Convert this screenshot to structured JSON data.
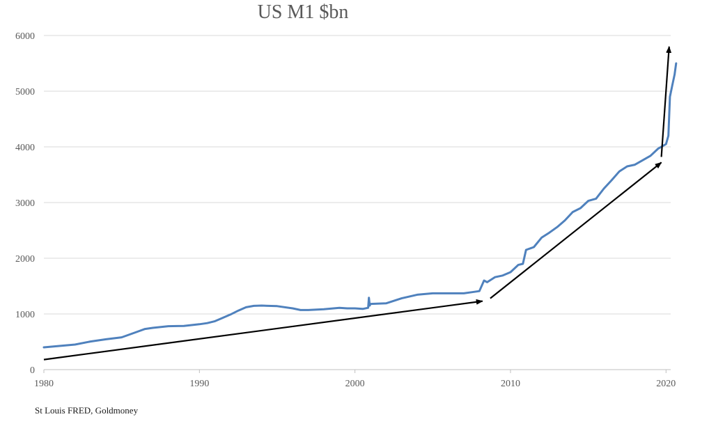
{
  "chart_data": {
    "type": "line",
    "title": "US M1 $bn",
    "source": "St Louis FRED, Goldmoney",
    "xlabel": "",
    "ylabel": "",
    "xlim": [
      1980,
      2020.3
    ],
    "ylim": [
      0,
      6000
    ],
    "y_ticks": [
      0,
      1000,
      2000,
      3000,
      4000,
      5000,
      6000
    ],
    "x_ticks": [
      1980,
      1990,
      2000,
      2010,
      2020
    ],
    "grid": true,
    "legend": "none",
    "series": [
      {
        "color": "#4f81bd",
        "points": [
          [
            1980.0,
            400
          ],
          [
            1981.0,
            425
          ],
          [
            1982.0,
            450
          ],
          [
            1983.0,
            505
          ],
          [
            1984.0,
            545
          ],
          [
            1985.0,
            580
          ],
          [
            1986.0,
            680
          ],
          [
            1986.5,
            730
          ],
          [
            1987.0,
            750
          ],
          [
            1988.0,
            780
          ],
          [
            1989.0,
            785
          ],
          [
            1990.0,
            815
          ],
          [
            1990.5,
            835
          ],
          [
            1991.0,
            870
          ],
          [
            1991.5,
            930
          ],
          [
            1992.0,
            990
          ],
          [
            1992.5,
            1060
          ],
          [
            1993.0,
            1120
          ],
          [
            1993.5,
            1145
          ],
          [
            1994.0,
            1150
          ],
          [
            1995.0,
            1140
          ],
          [
            1996.0,
            1100
          ],
          [
            1996.5,
            1070
          ],
          [
            1997.0,
            1070
          ],
          [
            1998.0,
            1085
          ],
          [
            1999.0,
            1110
          ],
          [
            1999.5,
            1100
          ],
          [
            2000.0,
            1100
          ],
          [
            2000.5,
            1090
          ],
          [
            2000.85,
            1110
          ],
          [
            2000.9,
            1290
          ],
          [
            2000.95,
            1150
          ],
          [
            2001.0,
            1180
          ],
          [
            2002.0,
            1190
          ],
          [
            2003.0,
            1280
          ],
          [
            2004.0,
            1345
          ],
          [
            2005.0,
            1370
          ],
          [
            2006.0,
            1370
          ],
          [
            2007.0,
            1370
          ],
          [
            2007.5,
            1390
          ],
          [
            2008.0,
            1410
          ],
          [
            2008.3,
            1600
          ],
          [
            2008.5,
            1570
          ],
          [
            2009.0,
            1660
          ],
          [
            2009.5,
            1690
          ],
          [
            2010.0,
            1750
          ],
          [
            2010.5,
            1880
          ],
          [
            2010.8,
            1900
          ],
          [
            2011.0,
            2150
          ],
          [
            2011.5,
            2200
          ],
          [
            2012.0,
            2370
          ],
          [
            2012.5,
            2460
          ],
          [
            2013.0,
            2560
          ],
          [
            2013.5,
            2680
          ],
          [
            2014.0,
            2830
          ],
          [
            2014.5,
            2900
          ],
          [
            2015.0,
            3030
          ],
          [
            2015.5,
            3070
          ],
          [
            2016.0,
            3250
          ],
          [
            2016.5,
            3400
          ],
          [
            2017.0,
            3560
          ],
          [
            2017.5,
            3650
          ],
          [
            2018.0,
            3680
          ],
          [
            2018.5,
            3760
          ],
          [
            2019.0,
            3840
          ],
          [
            2019.5,
            3970
          ],
          [
            2020.0,
            4050
          ],
          [
            2020.15,
            4200
          ],
          [
            2020.25,
            4900
          ],
          [
            2020.4,
            5100
          ],
          [
            2020.55,
            5300
          ],
          [
            2020.65,
            5500
          ]
        ]
      }
    ],
    "annotations": [
      {
        "type": "arrow",
        "from": [
          1980.0,
          180
        ],
        "to": [
          2008.2,
          1230
        ]
      },
      {
        "type": "arrow",
        "from": [
          2008.7,
          1280
        ],
        "to": [
          2019.7,
          3720
        ]
      },
      {
        "type": "arrow",
        "from": [
          2019.7,
          3820
        ],
        "to": [
          2020.2,
          5800
        ]
      }
    ]
  }
}
